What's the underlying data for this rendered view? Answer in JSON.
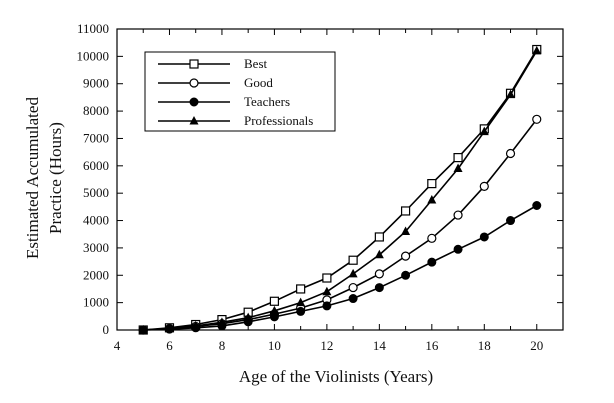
{
  "chart_data": {
    "type": "line",
    "title": "",
    "xlabel": "Age of the Violinists (Years)",
    "ylabel_lines": [
      "Estimated Accumulated",
      "Practice (Hours)"
    ],
    "xlim": [
      4,
      21
    ],
    "ylim": [
      0,
      11000
    ],
    "xticks": [
      4,
      6,
      8,
      10,
      12,
      14,
      16,
      18,
      20
    ],
    "yticks": [
      0,
      1000,
      2000,
      3000,
      4000,
      5000,
      6000,
      7000,
      8000,
      9000,
      10000,
      11000
    ],
    "grid": false,
    "legend_position": "top-left",
    "series": [
      {
        "name": "Best",
        "marker": "open-square",
        "x": [
          5,
          6,
          7,
          8,
          9,
          10,
          11,
          12,
          13,
          14,
          15,
          16,
          17,
          18,
          19,
          20
        ],
        "values": [
          0,
          80,
          200,
          380,
          650,
          1050,
          1500,
          1900,
          2550,
          3400,
          4350,
          5350,
          6300,
          7350,
          8650,
          10250
        ]
      },
      {
        "name": "Good",
        "marker": "open-circle",
        "x": [
          5,
          6,
          7,
          8,
          9,
          10,
          11,
          12,
          13,
          14,
          15,
          16,
          17,
          18,
          19,
          20
        ],
        "values": [
          0,
          50,
          130,
          230,
          380,
          580,
          800,
          1100,
          1550,
          2050,
          2700,
          3350,
          4200,
          5250,
          6450,
          7700
        ]
      },
      {
        "name": "Teachers",
        "marker": "filled-circle",
        "x": [
          5,
          6,
          7,
          8,
          9,
          10,
          11,
          12,
          13,
          14,
          15,
          16,
          17,
          18,
          19,
          20
        ],
        "values": [
          0,
          30,
          80,
          150,
          300,
          480,
          680,
          880,
          1150,
          1550,
          2000,
          2480,
          2950,
          3400,
          4000,
          4550
        ]
      },
      {
        "name": "Professionals",
        "marker": "filled-triangle",
        "x": [
          5,
          6,
          7,
          8,
          9,
          10,
          11,
          12,
          13,
          14,
          15,
          16,
          17,
          18,
          19,
          20
        ],
        "values": [
          0,
          60,
          150,
          280,
          450,
          700,
          1000,
          1400,
          2050,
          2750,
          3600,
          4750,
          5900,
          7250,
          8600,
          10200
        ]
      }
    ]
  }
}
